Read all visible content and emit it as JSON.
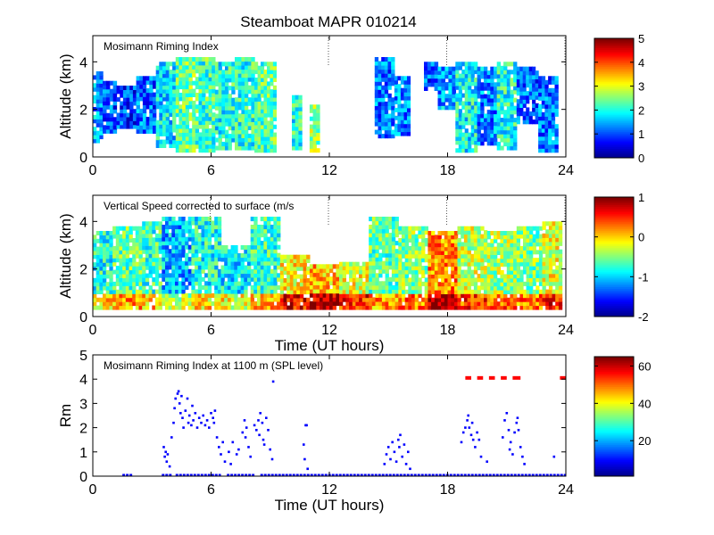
{
  "figure": {
    "title": "Steamboat MAPR 010214"
  },
  "colors": {
    "jet": [
      "#00008f",
      "#0000ff",
      "#0080ff",
      "#00ffff",
      "#80ff80",
      "#ffff00",
      "#ff8000",
      "#ff0000",
      "#800000"
    ],
    "points": "#0000ff",
    "flags": "#ff0000",
    "markers": "#555555"
  },
  "chart_data": [
    {
      "id": "riming",
      "type": "heatmap",
      "label": "Mosimann Riming Index",
      "xlabel": "",
      "ylabel": "Altitude (km)",
      "xlim": [
        0,
        24
      ],
      "ylim": [
        0,
        5.1
      ],
      "xticks": [
        "0",
        "6",
        "12",
        "18",
        "24"
      ],
      "yticks": [
        "0",
        "2",
        "4"
      ],
      "colorbar": {
        "min": 0,
        "max": 5,
        "ticks": [
          "0",
          "1",
          "2",
          "3",
          "4",
          "5"
        ]
      },
      "marker_hours": [
        12,
        18,
        24
      ],
      "data_columns": [
        {
          "t0": 0.0,
          "t1": 0.5,
          "top": 3.6,
          "bottom": 0.6,
          "value": 1.4
        },
        {
          "t0": 0.5,
          "t1": 1.2,
          "top": 3.2,
          "bottom": 1.0,
          "value": 1.0
        },
        {
          "t0": 1.2,
          "t1": 2.2,
          "top": 3.0,
          "bottom": 1.2,
          "value": 0.9
        },
        {
          "t0": 2.2,
          "t1": 3.2,
          "top": 3.4,
          "bottom": 1.0,
          "value": 1.1
        },
        {
          "t0": 3.2,
          "t1": 4.2,
          "top": 4.0,
          "bottom": 0.4,
          "value": 1.8
        },
        {
          "t0": 4.2,
          "t1": 5.2,
          "top": 4.2,
          "bottom": 0.2,
          "value": 2.4
        },
        {
          "t0": 5.2,
          "t1": 6.2,
          "top": 4.2,
          "bottom": 0.2,
          "value": 2.2
        },
        {
          "t0": 6.2,
          "t1": 7.2,
          "top": 4.0,
          "bottom": 0.3,
          "value": 2.0
        },
        {
          "t0": 7.2,
          "t1": 8.2,
          "top": 4.2,
          "bottom": 0.3,
          "value": 2.1
        },
        {
          "t0": 8.2,
          "t1": 9.3,
          "top": 4.0,
          "bottom": 0.2,
          "value": 2.3
        },
        {
          "t0": 10.1,
          "t1": 10.6,
          "top": 2.6,
          "bottom": 0.3,
          "value": 2.0
        },
        {
          "t0": 11.0,
          "t1": 11.5,
          "top": 2.2,
          "bottom": 0.2,
          "value": 2.6
        },
        {
          "t0": 14.3,
          "t1": 15.3,
          "top": 4.2,
          "bottom": 0.8,
          "value": 1.2
        },
        {
          "t0": 15.3,
          "t1": 16.1,
          "top": 3.4,
          "bottom": 0.9,
          "value": 1.3
        },
        {
          "t0": 16.8,
          "t1": 17.5,
          "top": 4.0,
          "bottom": 2.8,
          "value": 1.0
        },
        {
          "t0": 17.5,
          "t1": 18.4,
          "top": 3.8,
          "bottom": 2.0,
          "value": 1.4
        },
        {
          "t0": 18.4,
          "t1": 19.5,
          "top": 4.0,
          "bottom": 0.2,
          "value": 1.9
        },
        {
          "t0": 19.5,
          "t1": 20.5,
          "top": 3.8,
          "bottom": 0.5,
          "value": 1.3
        },
        {
          "t0": 20.5,
          "t1": 21.5,
          "top": 4.0,
          "bottom": 0.3,
          "value": 2.0
        },
        {
          "t0": 21.5,
          "t1": 22.6,
          "top": 3.8,
          "bottom": 1.4,
          "value": 1.1
        },
        {
          "t0": 22.6,
          "t1": 23.6,
          "top": 3.4,
          "bottom": 0.2,
          "value": 1.2
        }
      ]
    },
    {
      "id": "vspeed",
      "type": "heatmap",
      "label": "Vertical Speed corrected to surface (m/s",
      "xlabel": "Time (UT hours)",
      "ylabel": "Altitude (km)",
      "xlim": [
        0,
        24
      ],
      "ylim": [
        0,
        5.1
      ],
      "xticks": [
        "0",
        "6",
        "12",
        "18",
        "24"
      ],
      "yticks": [
        "0",
        "2",
        "4"
      ],
      "colorbar": {
        "min": -2,
        "max": 1,
        "ticks": [
          "-2",
          "-1",
          "0",
          "1"
        ]
      },
      "marker_hours": [
        6,
        12,
        18,
        24
      ],
      "data_columns": [
        {
          "t0": 0.0,
          "t1": 1.0,
          "top": 3.6,
          "bottom": 0.3,
          "value": -0.8
        },
        {
          "t0": 1.0,
          "t1": 2.5,
          "top": 3.8,
          "bottom": 0.3,
          "value": -0.6
        },
        {
          "t0": 2.5,
          "t1": 3.5,
          "top": 4.0,
          "bottom": 0.3,
          "value": -0.7
        },
        {
          "t0": 3.5,
          "t1": 5.0,
          "top": 4.2,
          "bottom": 0.3,
          "value": -1.1
        },
        {
          "t0": 5.0,
          "t1": 6.5,
          "top": 4.2,
          "bottom": 0.3,
          "value": -0.8
        },
        {
          "t0": 6.5,
          "t1": 8.0,
          "top": 3.0,
          "bottom": 0.3,
          "value": -0.9
        },
        {
          "t0": 8.0,
          "t1": 9.5,
          "top": 4.2,
          "bottom": 0.3,
          "value": -0.7
        },
        {
          "t0": 9.5,
          "t1": 11.0,
          "top": 2.6,
          "bottom": 0.3,
          "value": -0.1
        },
        {
          "t0": 11.0,
          "t1": 12.5,
          "top": 2.2,
          "bottom": 0.3,
          "value": 0.1
        },
        {
          "t0": 12.5,
          "t1": 14.0,
          "top": 2.3,
          "bottom": 0.3,
          "value": -0.2
        },
        {
          "t0": 14.0,
          "t1": 15.5,
          "top": 4.2,
          "bottom": 0.3,
          "value": -0.6
        },
        {
          "t0": 15.5,
          "t1": 17.0,
          "top": 3.8,
          "bottom": 0.3,
          "value": -0.5
        },
        {
          "t0": 17.0,
          "t1": 18.5,
          "top": 3.6,
          "bottom": 0.3,
          "value": 0.2
        },
        {
          "t0": 18.5,
          "t1": 20.0,
          "top": 3.8,
          "bottom": 0.3,
          "value": -0.3
        },
        {
          "t0": 20.0,
          "t1": 21.5,
          "top": 3.6,
          "bottom": 0.3,
          "value": -0.4
        },
        {
          "t0": 21.5,
          "t1": 22.8,
          "top": 3.8,
          "bottom": 0.3,
          "value": -0.5
        },
        {
          "t0": 22.8,
          "t1": 23.8,
          "top": 4.0,
          "bottom": 0.3,
          "value": -0.2
        }
      ]
    },
    {
      "id": "rm",
      "type": "scatter",
      "label": "Mosimann Riming Index at 1100 m (SPL level)",
      "xlabel": "Time (UT hours)",
      "ylabel": "Rm",
      "xlim": [
        0,
        24
      ],
      "ylim": [
        0,
        5
      ],
      "xticks": [
        "0",
        "6",
        "12",
        "18",
        "24"
      ],
      "yticks": [
        "0",
        "1",
        "2",
        "3",
        "4",
        "5"
      ],
      "colorbar": {
        "min": 1,
        "max": 65,
        "ticks": [
          "20",
          "40",
          "60"
        ]
      },
      "zero_segments": [
        [
          1.5,
          2.0
        ],
        [
          3.5,
          4.0
        ],
        [
          4.2,
          6.5
        ],
        [
          6.8,
          8.2
        ],
        [
          8.5,
          24.0
        ]
      ],
      "flag_level": 4.05,
      "flag_segments": [
        [
          18.9,
          19.2
        ],
        [
          19.5,
          19.8
        ],
        [
          20.1,
          20.4
        ],
        [
          20.7,
          21.0
        ],
        [
          21.3,
          21.7
        ],
        [
          23.7,
          24.0
        ]
      ],
      "points": [
        [
          3.6,
          1.2
        ],
        [
          3.65,
          0.8
        ],
        [
          3.7,
          1.0
        ],
        [
          3.75,
          0.6
        ],
        [
          3.8,
          0.9
        ],
        [
          3.9,
          0.4
        ],
        [
          4.0,
          1.6
        ],
        [
          4.1,
          2.2
        ],
        [
          4.15,
          2.8
        ],
        [
          4.2,
          3.2
        ],
        [
          4.3,
          3.4
        ],
        [
          4.35,
          3.5
        ],
        [
          4.4,
          3.0
        ],
        [
          4.45,
          2.6
        ],
        [
          4.5,
          3.3
        ],
        [
          4.55,
          2.4
        ],
        [
          4.6,
          2.0
        ],
        [
          4.7,
          2.7
        ],
        [
          4.8,
          3.2
        ],
        [
          4.85,
          2.2
        ],
        [
          4.9,
          2.5
        ],
        [
          5.0,
          2.1
        ],
        [
          5.05,
          2.9
        ],
        [
          5.1,
          2.3
        ],
        [
          5.2,
          2.6
        ],
        [
          5.3,
          2.0
        ],
        [
          5.4,
          2.4
        ],
        [
          5.5,
          2.2
        ],
        [
          5.6,
          2.5
        ],
        [
          5.7,
          2.1
        ],
        [
          5.8,
          2.3
        ],
        [
          5.9,
          2.0
        ],
        [
          6.0,
          2.6
        ],
        [
          6.1,
          2.4
        ],
        [
          6.15,
          2.2
        ],
        [
          6.2,
          2.7
        ],
        [
          6.3,
          1.6
        ],
        [
          6.4,
          1.2
        ],
        [
          6.5,
          0.9
        ],
        [
          6.6,
          1.4
        ],
        [
          6.7,
          0.6
        ],
        [
          6.9,
          1.0
        ],
        [
          7.0,
          0.5
        ],
        [
          7.1,
          1.4
        ],
        [
          7.3,
          0.9
        ],
        [
          7.4,
          1.1
        ],
        [
          7.6,
          1.8
        ],
        [
          7.7,
          2.3
        ],
        [
          7.75,
          1.6
        ],
        [
          7.8,
          2.0
        ],
        [
          7.9,
          1.2
        ],
        [
          8.0,
          0.8
        ],
        [
          8.2,
          2.1
        ],
        [
          8.3,
          1.9
        ],
        [
          8.4,
          2.3
        ],
        [
          8.45,
          1.7
        ],
        [
          8.5,
          2.6
        ],
        [
          8.6,
          2.2
        ],
        [
          8.65,
          1.5
        ],
        [
          8.7,
          1.3
        ],
        [
          8.8,
          2.4
        ],
        [
          8.9,
          1.9
        ],
        [
          9.0,
          1.1
        ],
        [
          9.1,
          0.7
        ],
        [
          9.15,
          3.9
        ],
        [
          10.7,
          1.3
        ],
        [
          10.75,
          0.7
        ],
        [
          10.8,
          2.1
        ],
        [
          10.85,
          2.1
        ],
        [
          10.9,
          0.3
        ],
        [
          14.8,
          0.5
        ],
        [
          14.9,
          0.9
        ],
        [
          15.0,
          1.2
        ],
        [
          15.1,
          0.7
        ],
        [
          15.2,
          1.4
        ],
        [
          15.3,
          1.0
        ],
        [
          15.4,
          0.6
        ],
        [
          15.5,
          1.5
        ],
        [
          15.55,
          1.2
        ],
        [
          15.6,
          1.7
        ],
        [
          15.7,
          0.8
        ],
        [
          15.8,
          1.3
        ],
        [
          15.9,
          0.5
        ],
        [
          16.0,
          1.0
        ],
        [
          16.1,
          0.3
        ],
        [
          18.7,
          1.4
        ],
        [
          18.8,
          1.8
        ],
        [
          18.9,
          2.0
        ],
        [
          19.0,
          2.3
        ],
        [
          19.05,
          2.5
        ],
        [
          19.1,
          2.0
        ],
        [
          19.2,
          1.7
        ],
        [
          19.25,
          2.2
        ],
        [
          19.3,
          1.5
        ],
        [
          19.4,
          1.2
        ],
        [
          19.5,
          1.8
        ],
        [
          19.6,
          1.5
        ],
        [
          19.7,
          0.8
        ],
        [
          20.0,
          0.6
        ],
        [
          20.8,
          1.6
        ],
        [
          20.9,
          2.3
        ],
        [
          21.0,
          2.6
        ],
        [
          21.1,
          1.9
        ],
        [
          21.15,
          1.1
        ],
        [
          21.2,
          1.4
        ],
        [
          21.3,
          0.9
        ],
        [
          21.4,
          1.8
        ],
        [
          21.5,
          2.2
        ],
        [
          21.55,
          2.4
        ],
        [
          21.6,
          1.9
        ],
        [
          21.7,
          1.2
        ],
        [
          21.8,
          0.8
        ],
        [
          21.9,
          0.5
        ],
        [
          23.4,
          0.8
        ]
      ]
    }
  ]
}
